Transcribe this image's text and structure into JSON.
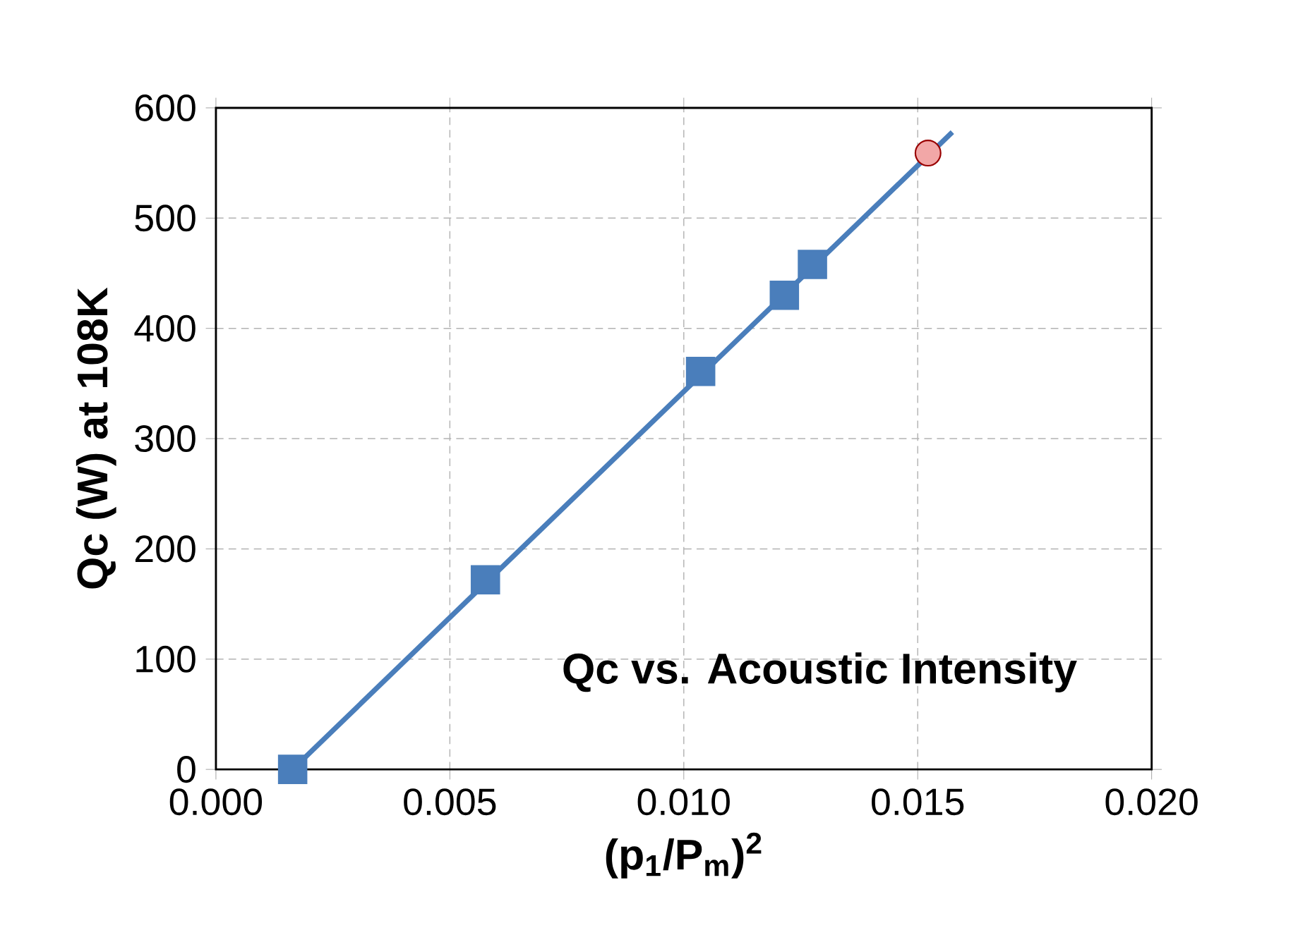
{
  "chart_data": {
    "type": "scatter",
    "title": "Qc vs. Acoustic Intensity",
    "xlabel": "(p$_{1}$/P$_{m}$)$^{2}$",
    "ylabel": "Qc (W) at 108K",
    "xlim": [
      0,
      0.02
    ],
    "ylim": [
      0,
      600
    ],
    "xticks": [
      {
        "value": 0,
        "label": "0.000"
      },
      {
        "value": 0.005,
        "label": "0.005"
      },
      {
        "value": 0.01,
        "label": "0.010"
      },
      {
        "value": 0.015,
        "label": "0.015"
      },
      {
        "value": 0.02,
        "label": "0.020"
      }
    ],
    "yticks": [
      0,
      100,
      200,
      300,
      400,
      500,
      600
    ],
    "grid": true,
    "series": [
      {
        "type": "line",
        "marker": "none",
        "line_style": "solid",
        "color": "#4a7ebb",
        "x": [
          0.00164,
          0.01574
        ],
        "values": [
          0,
          578
        ]
      },
      {
        "marker": "square",
        "color": "#4a7ebb",
        "x": [
          0.00164,
          0.00576,
          0.01036,
          0.01215,
          0.01275
        ],
        "values": [
          0,
          172,
          361,
          430,
          458
        ]
      },
      {
        "marker": "circle",
        "color": "#f2a7a7",
        "x": [
          0.01522
        ],
        "values": [
          559
        ]
      }
    ]
  }
}
